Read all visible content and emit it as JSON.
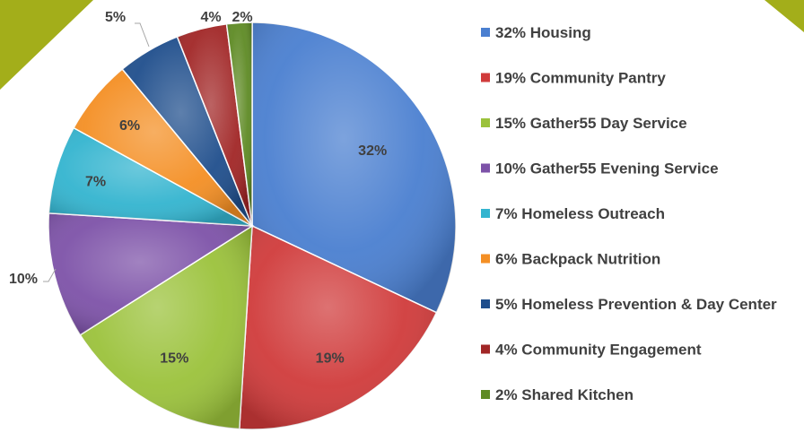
{
  "chart_data": {
    "type": "pie",
    "title": "",
    "slices": [
      {
        "value_label": "32%",
        "legend": "32% Housing",
        "value": 32,
        "color": "#4a7fd0"
      },
      {
        "value_label": "19%",
        "legend": "19% Community Pantry",
        "value": 19,
        "color": "#d03b3b"
      },
      {
        "value_label": "15%",
        "legend": "15% Gather55 Day Service",
        "value": 15,
        "color": "#9bc23b"
      },
      {
        "value_label": "10%",
        "legend": "10% Gather55 Evening Service",
        "value": 10,
        "color": "#7d52a8"
      },
      {
        "value_label": "7%",
        "legend": "7% Homeless Outreach",
        "value": 7,
        "color": "#33b4cf"
      },
      {
        "value_label": "6%",
        "legend": "6% Backpack Nutrition",
        "value": 6,
        "color": "#f48f24"
      },
      {
        "value_label": "5%",
        "legend": "5% Homeless Prevention & Day Center",
        "value": 5,
        "color": "#1f4e8c"
      },
      {
        "value_label": "4%",
        "legend": "4% Community Engagement",
        "value": 4,
        "color": "#a12626"
      },
      {
        "value_label": "2%",
        "legend": "2% Shared Kitchen",
        "value": 2,
        "color": "#5e8a24"
      }
    ],
    "legend_position": "right"
  },
  "decor_colors": {
    "corner_accent": "#a3ae1a"
  }
}
